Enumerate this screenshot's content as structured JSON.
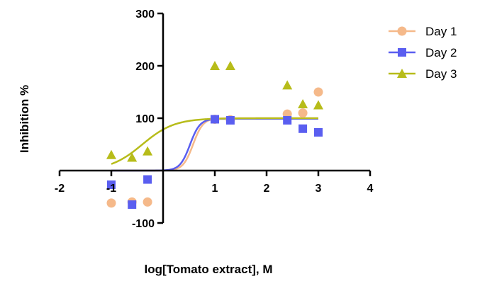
{
  "chart_data": {
    "type": "scatter",
    "title": "",
    "xlabel": "log[Tomato extract], M",
    "ylabel": "Inhibition %",
    "xlim": [
      -2,
      4
    ],
    "ylim": [
      -100,
      300
    ],
    "xticks": [
      -2,
      -1,
      1,
      2,
      3,
      4
    ],
    "yticks": [
      -100,
      100,
      200,
      300
    ],
    "legend_position": "top-right",
    "grid": false,
    "series": [
      {
        "name": "Day 1",
        "color": "#f5b98a",
        "marker": "circle",
        "points": [
          [
            -1,
            -62
          ],
          [
            -0.6,
            -60
          ],
          [
            -0.3,
            -60
          ],
          [
            1,
            98
          ],
          [
            1.3,
            97
          ],
          [
            2.4,
            108
          ],
          [
            2.7,
            110
          ],
          [
            3,
            150
          ]
        ],
        "fit": {
          "bottom": 0,
          "top": 100,
          "logEC50": 0.58,
          "hill": 4.5
        }
      },
      {
        "name": "Day 2",
        "color": "#5a5ef0",
        "marker": "square",
        "points": [
          [
            -1,
            -27
          ],
          [
            -0.6,
            -65
          ],
          [
            -0.3,
            -17
          ],
          [
            1,
            98
          ],
          [
            1.3,
            96
          ],
          [
            2.4,
            96
          ],
          [
            2.7,
            80
          ],
          [
            3,
            73
          ]
        ],
        "fit": {
          "bottom": 0,
          "top": 99,
          "logEC50": 0.52,
          "hill": 4.5
        }
      },
      {
        "name": "Day 3",
        "color": "#b7bc1a",
        "marker": "triangle",
        "points": [
          [
            -1,
            30
          ],
          [
            -0.6,
            25
          ],
          [
            -0.3,
            37
          ],
          [
            1,
            200
          ],
          [
            1.3,
            200
          ],
          [
            2.4,
            163
          ],
          [
            2.7,
            127
          ],
          [
            3,
            125
          ]
        ],
        "fit": {
          "bottom": 0,
          "top": 100,
          "logEC50": -0.4,
          "hill": 1.4
        }
      }
    ]
  }
}
